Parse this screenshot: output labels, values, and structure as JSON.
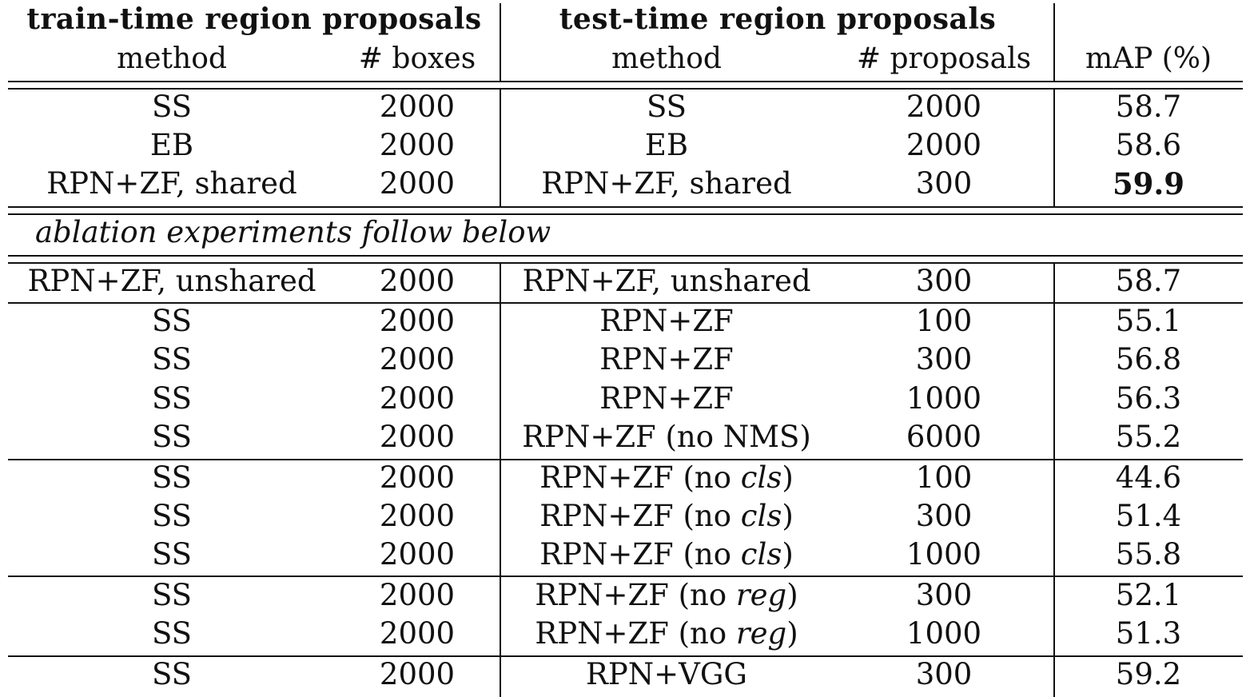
{
  "table": {
    "group_headers": {
      "train": "train-time region proposals",
      "test": "test-time region proposals"
    },
    "column_headers": {
      "train_method": "method",
      "train_boxes": "# boxes",
      "test_method": "method",
      "test_proposals": "# proposals",
      "map": "mAP (%)"
    },
    "ablation_label": "ablation experiments follow below",
    "main_rows": [
      {
        "train_method": "SS",
        "boxes": "2000",
        "test_method": "SS",
        "proposals": "2000",
        "map": "58.7",
        "bold": false
      },
      {
        "train_method": "EB",
        "boxes": "2000",
        "test_method": "EB",
        "proposals": "2000",
        "map": "58.6",
        "bold": false
      },
      {
        "train_method": "RPN+ZF, shared",
        "boxes": "2000",
        "test_method": "RPN+ZF, shared",
        "proposals": "300",
        "map": "59.9",
        "bold": true
      }
    ],
    "ablation_rows": [
      {
        "train_method": "RPN+ZF, unshared",
        "boxes": "2000",
        "test_method_pre": "RPN+ZF, unshared",
        "test_method_em": "",
        "test_method_post": "",
        "proposals": "300",
        "map": "58.7"
      },
      {
        "train_method": "SS",
        "boxes": "2000",
        "test_method_pre": "RPN+ZF",
        "test_method_em": "",
        "test_method_post": "",
        "proposals": "100",
        "map": "55.1"
      },
      {
        "train_method": "SS",
        "boxes": "2000",
        "test_method_pre": "RPN+ZF",
        "test_method_em": "",
        "test_method_post": "",
        "proposals": "300",
        "map": "56.8"
      },
      {
        "train_method": "SS",
        "boxes": "2000",
        "test_method_pre": "RPN+ZF",
        "test_method_em": "",
        "test_method_post": "",
        "proposals": "1000",
        "map": "56.3"
      },
      {
        "train_method": "SS",
        "boxes": "2000",
        "test_method_pre": "RPN+ZF (no NMS)",
        "test_method_em": "",
        "test_method_post": "",
        "proposals": "6000",
        "map": "55.2"
      },
      {
        "train_method": "SS",
        "boxes": "2000",
        "test_method_pre": "RPN+ZF (no ",
        "test_method_em": "cls",
        "test_method_post": ")",
        "proposals": "100",
        "map": "44.6"
      },
      {
        "train_method": "SS",
        "boxes": "2000",
        "test_method_pre": "RPN+ZF (no ",
        "test_method_em": "cls",
        "test_method_post": ")",
        "proposals": "300",
        "map": "51.4"
      },
      {
        "train_method": "SS",
        "boxes": "2000",
        "test_method_pre": "RPN+ZF (no ",
        "test_method_em": "cls",
        "test_method_post": ")",
        "proposals": "1000",
        "map": "55.8"
      },
      {
        "train_method": "SS",
        "boxes": "2000",
        "test_method_pre": "RPN+ZF (no ",
        "test_method_em": "reg",
        "test_method_post": ")",
        "proposals": "300",
        "map": "52.1"
      },
      {
        "train_method": "SS",
        "boxes": "2000",
        "test_method_pre": "RPN+ZF (no ",
        "test_method_em": "reg",
        "test_method_post": ")",
        "proposals": "1000",
        "map": "51.3"
      },
      {
        "train_method": "SS",
        "boxes": "2000",
        "test_method_pre": "RPN+VGG",
        "test_method_em": "",
        "test_method_post": "",
        "proposals": "300",
        "map": "59.2"
      }
    ]
  }
}
